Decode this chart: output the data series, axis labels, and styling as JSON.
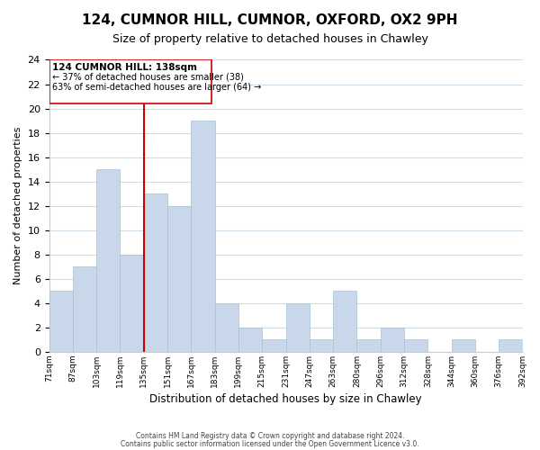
{
  "title": "124, CUMNOR HILL, CUMNOR, OXFORD, OX2 9PH",
  "subtitle": "Size of property relative to detached houses in Chawley",
  "xlabel": "Distribution of detached houses by size in Chawley",
  "ylabel": "Number of detached properties",
  "bar_color": "#c8d8ea",
  "bar_edge_color": "#a8c0d4",
  "highlight_line_color": "#cc0000",
  "bin_labels": [
    "71sqm",
    "87sqm",
    "103sqm",
    "119sqm",
    "135sqm",
    "151sqm",
    "167sqm",
    "183sqm",
    "199sqm",
    "215sqm",
    "231sqm",
    "247sqm",
    "263sqm",
    "280sqm",
    "296sqm",
    "312sqm",
    "328sqm",
    "344sqm",
    "360sqm",
    "376sqm",
    "392sqm"
  ],
  "counts": [
    5,
    7,
    15,
    8,
    13,
    12,
    19,
    4,
    2,
    1,
    4,
    1,
    5,
    1,
    2,
    1,
    0,
    1,
    0,
    1
  ],
  "ylim": [
    0,
    24
  ],
  "yticks": [
    0,
    2,
    4,
    6,
    8,
    10,
    12,
    14,
    16,
    18,
    20,
    22,
    24
  ],
  "annotation_title": "124 CUMNOR HILL: 138sqm",
  "annotation_line1": "← 37% of detached houses are smaller (38)",
  "annotation_line2": "63% of semi-detached houses are larger (64) →",
  "footer1": "Contains HM Land Registry data © Crown copyright and database right 2024.",
  "footer2": "Contains public sector information licensed under the Open Government Licence v3.0.",
  "background_color": "#ffffff",
  "grid_color": "#d0dce6",
  "red_line_index": 4
}
